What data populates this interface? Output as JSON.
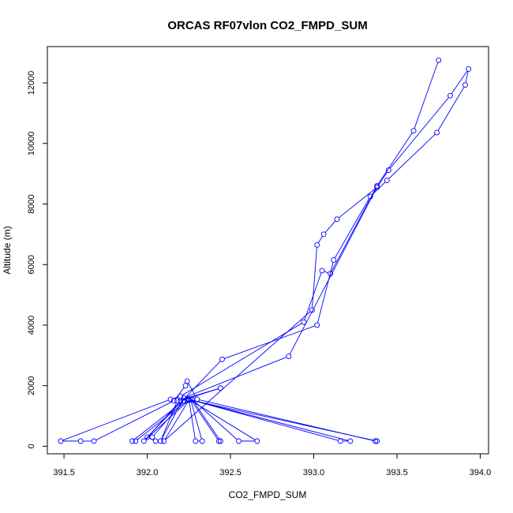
{
  "chart_data": {
    "type": "line",
    "title": "ORCAS RF07vlon CO2_FMPD_SUM",
    "xlabel": "CO2_FMPD_SUM",
    "ylabel": "Altitude (m)",
    "xlim": [
      391.4,
      394.05
    ],
    "ylim": [
      -250,
      13200
    ],
    "xticks": [
      391.5,
      392.0,
      392.5,
      393.0,
      393.5,
      394.0
    ],
    "xtick_labels": [
      "391.5",
      "392.0",
      "392.5",
      "393.0",
      "393.5",
      "394.0"
    ],
    "yticks": [
      0,
      2000,
      4000,
      6000,
      8000,
      10000,
      12000
    ],
    "ytick_labels": [
      "0",
      "2000",
      "4000",
      "6000",
      "8000",
      "10000",
      "12000"
    ],
    "grid": false,
    "color": "#0000ff",
    "series": [
      {
        "points": [
          [
            393.75,
            12750
          ],
          [
            393.6,
            10420
          ],
          [
            393.38,
            8600
          ],
          [
            393.1,
            5700
          ],
          [
            393.05,
            5800
          ],
          [
            392.94,
            4100
          ],
          [
            392.2,
            1650
          ],
          [
            392.14,
            1550
          ],
          [
            391.48,
            170
          ],
          [
            391.6,
            170
          ],
          [
            391.68,
            170
          ],
          [
            392.16,
            1500
          ],
          [
            392.23,
            2000
          ],
          [
            392.24,
            2150
          ],
          [
            392.3,
            1550
          ],
          [
            393.37,
            170
          ],
          [
            393.38,
            170
          ],
          [
            392.24,
            1550
          ],
          [
            392.25,
            1550
          ],
          [
            392.29,
            170
          ],
          [
            392.33,
            170
          ],
          [
            392.26,
            1550
          ],
          [
            392.43,
            170
          ],
          [
            392.44,
            170
          ],
          [
            392.27,
            1550
          ],
          [
            392.55,
            170
          ],
          [
            392.66,
            170
          ],
          [
            392.25,
            1550
          ],
          [
            393.16,
            170
          ],
          [
            393.22,
            170
          ],
          [
            392.25,
            1550
          ],
          [
            391.93,
            170
          ],
          [
            391.91,
            170
          ],
          [
            392.22,
            1500
          ],
          [
            392.03,
            300
          ],
          [
            392.05,
            170
          ],
          [
            392.0,
            300
          ],
          [
            392.45,
            2870
          ],
          [
            393.02,
            4000
          ],
          [
            393.12,
            6150
          ],
          [
            393.34,
            8250
          ],
          [
            393.44,
            8780
          ],
          [
            393.74,
            10360
          ],
          [
            393.91,
            11930
          ],
          [
            393.93,
            12460
          ],
          [
            393.82,
            11580
          ],
          [
            393.45,
            9120
          ],
          [
            393.38,
            8550
          ],
          [
            393.14,
            7500
          ],
          [
            393.06,
            7000
          ],
          [
            393.02,
            6650
          ],
          [
            392.99,
            4500
          ],
          [
            392.1,
            170
          ],
          [
            392.25,
            1520
          ],
          [
            391.98,
            170
          ],
          [
            392.2,
            1500
          ],
          [
            392.44,
            1920
          ],
          [
            392.18,
            1500
          ],
          [
            392.08,
            170
          ],
          [
            392.22,
            1600
          ],
          [
            392.85,
            2970
          ],
          [
            393.38,
            8560
          ]
        ]
      }
    ]
  }
}
